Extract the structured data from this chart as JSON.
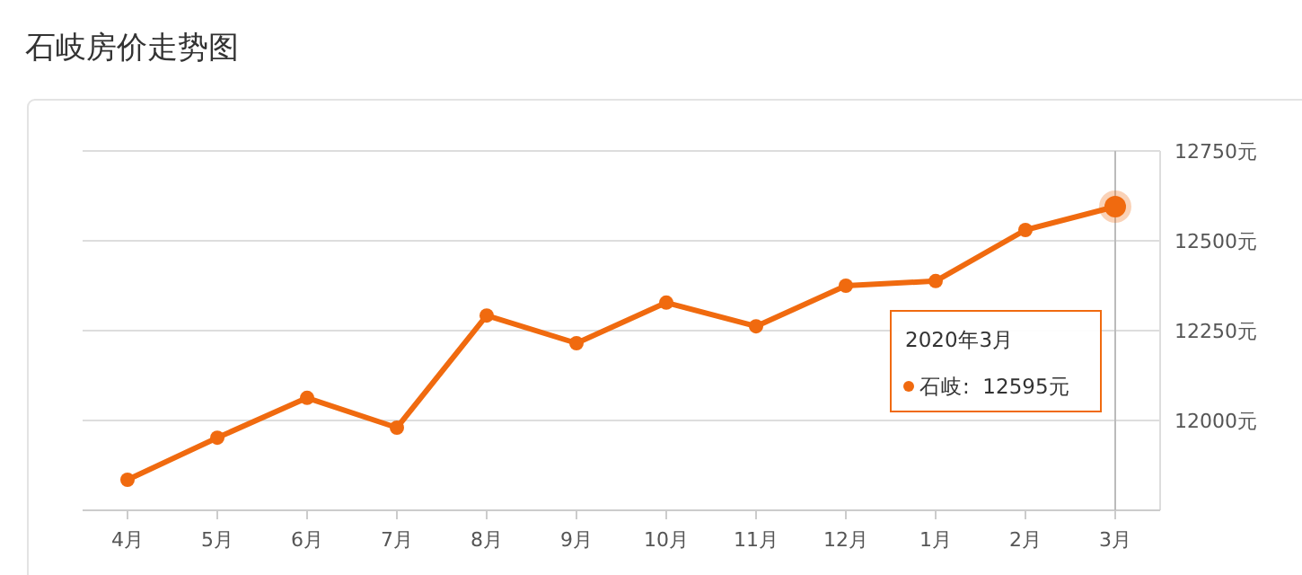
{
  "chart_data": {
    "type": "line",
    "title": "石岐房价走势图",
    "categories": [
      "4月",
      "5月",
      "6月",
      "7月",
      "8月",
      "9月",
      "10月",
      "11月",
      "12月",
      "1月",
      "2月",
      "3月"
    ],
    "series": [
      {
        "color": "#f06a0f",
        "values": [
          11835,
          11952,
          12063,
          11980,
          12292,
          12215,
          12328,
          12262,
          12375,
          12388,
          12530,
          12595
        ]
      }
    ],
    "ylim": [
      11750,
      12750
    ],
    "yticks": [
      {
        "value": 12000,
        "label": "12000元"
      },
      {
        "value": 12250,
        "label": "12250元"
      },
      {
        "value": 12500,
        "label": "12500元"
      },
      {
        "value": 12750,
        "label": "12750元"
      }
    ],
    "grid": "y",
    "marker": "circle",
    "line_style": "solid",
    "ref_lines": [
      {
        "axis": "x",
        "value": "3月",
        "color": "#bbbbbb"
      }
    ],
    "annotations": [
      "2020年3月",
      "石岐:  12595元"
    ]
  }
}
